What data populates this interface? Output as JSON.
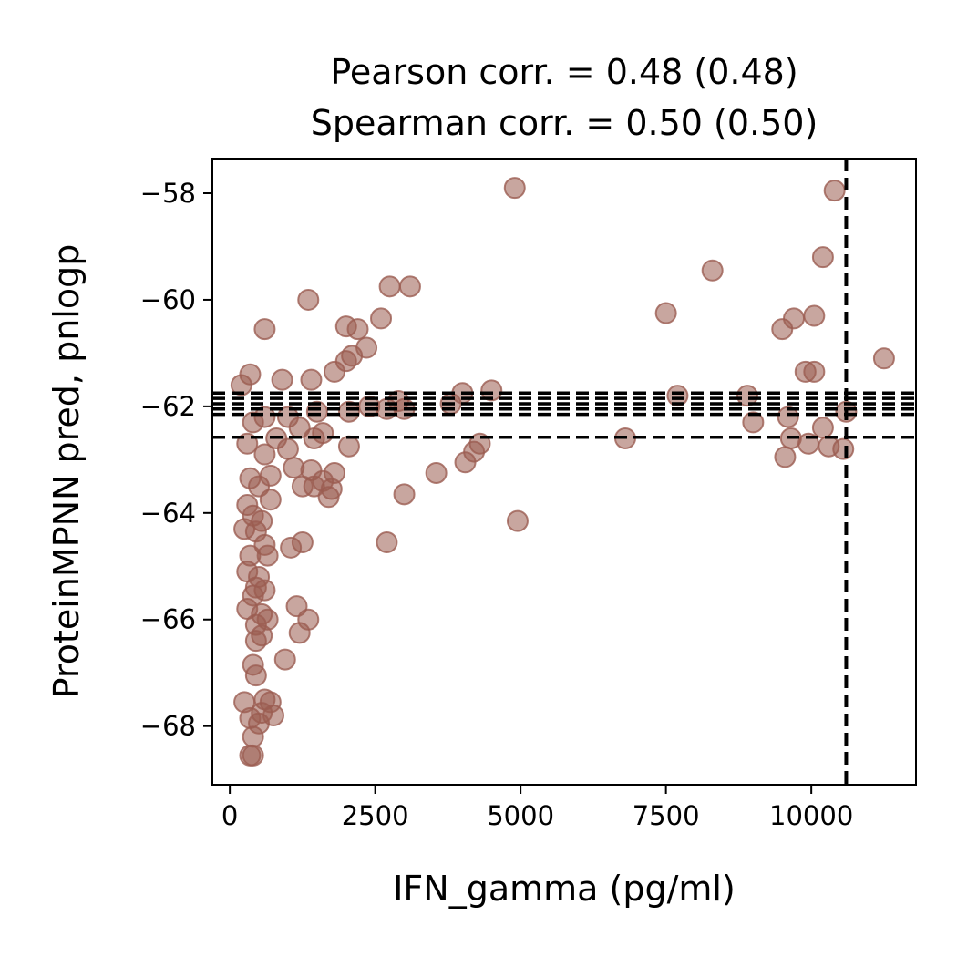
{
  "chart_data": {
    "type": "scatter",
    "title": [
      "Pearson corr. = 0.48 (0.48)",
      "Spearman corr. = 0.50 (0.50)"
    ],
    "xlabel": "IFN_gamma (pg/ml)",
    "ylabel": "ProteinMPNN pred, pnlogp",
    "xlim": [
      -300,
      11800
    ],
    "ylim": [
      -69.1,
      -57.35
    ],
    "xticks": [
      0,
      2500,
      5000,
      7500,
      10000
    ],
    "xtick_labels": [
      "0",
      "2500",
      "5000",
      "7500",
      "10000"
    ],
    "yticks": [
      -58,
      -60,
      -62,
      -64,
      -66,
      -68
    ],
    "ytick_labels": [
      "−58",
      "−60",
      "−62",
      "−64",
      "−66",
      "−68"
    ],
    "grid": false,
    "point_color": "#9b5d51",
    "point_alpha": 0.55,
    "reference_lines": {
      "horizontal_dashed": [
        -61.75,
        -61.85,
        -61.95,
        -62.05,
        -62.15,
        -62.58
      ],
      "vertical_dashed": [
        10600
      ]
    },
    "points": [
      [
        4900,
        -57.9
      ],
      [
        10400,
        -57.95
      ],
      [
        10200,
        -59.2
      ],
      [
        8300,
        -59.45
      ],
      [
        1350,
        -60.0
      ],
      [
        2750,
        -59.75
      ],
      [
        3100,
        -59.75
      ],
      [
        7500,
        -60.25
      ],
      [
        10050,
        -60.3
      ],
      [
        9700,
        -60.35
      ],
      [
        2600,
        -60.35
      ],
      [
        600,
        -60.55
      ],
      [
        9500,
        -60.55
      ],
      [
        2000,
        -60.5
      ],
      [
        2200,
        -60.55
      ],
      [
        2350,
        -60.9
      ],
      [
        2100,
        -61.05
      ],
      [
        2000,
        -61.15
      ],
      [
        11250,
        -61.1
      ],
      [
        9900,
        -61.35
      ],
      [
        10050,
        -61.35
      ],
      [
        1800,
        -61.35
      ],
      [
        1400,
        -61.5
      ],
      [
        900,
        -61.5
      ],
      [
        350,
        -61.4
      ],
      [
        200,
        -61.6
      ],
      [
        4500,
        -61.7
      ],
      [
        4000,
        -61.75
      ],
      [
        7700,
        -61.8
      ],
      [
        8900,
        -61.8
      ],
      [
        2900,
        -61.9
      ],
      [
        3800,
        -61.95
      ],
      [
        2400,
        -62.0
      ],
      [
        2050,
        -62.1
      ],
      [
        3000,
        -62.05
      ],
      [
        2700,
        -62.05
      ],
      [
        1500,
        -62.1
      ],
      [
        1000,
        -62.2
      ],
      [
        600,
        -62.2
      ],
      [
        400,
        -62.3
      ],
      [
        9600,
        -62.2
      ],
      [
        10600,
        -62.1
      ],
      [
        10200,
        -62.4
      ],
      [
        9000,
        -62.3
      ],
      [
        1200,
        -62.4
      ],
      [
        1600,
        -62.5
      ],
      [
        1450,
        -62.6
      ],
      [
        800,
        -62.6
      ],
      [
        6800,
        -62.6
      ],
      [
        9650,
        -62.6
      ],
      [
        9950,
        -62.7
      ],
      [
        10300,
        -62.75
      ],
      [
        10550,
        -62.8
      ],
      [
        4300,
        -62.7
      ],
      [
        4200,
        -62.85
      ],
      [
        2050,
        -62.75
      ],
      [
        1000,
        -62.8
      ],
      [
        600,
        -62.9
      ],
      [
        300,
        -62.7
      ],
      [
        4050,
        -63.05
      ],
      [
        9550,
        -62.95
      ],
      [
        1100,
        -63.15
      ],
      [
        1400,
        -63.2
      ],
      [
        1800,
        -63.25
      ],
      [
        3550,
        -63.25
      ],
      [
        700,
        -63.3
      ],
      [
        350,
        -63.35
      ],
      [
        1600,
        -63.4
      ],
      [
        1250,
        -63.5
      ],
      [
        1450,
        -63.5
      ],
      [
        1750,
        -63.55
      ],
      [
        1700,
        -63.7
      ],
      [
        3000,
        -63.65
      ],
      [
        500,
        -63.5
      ],
      [
        700,
        -63.75
      ],
      [
        300,
        -63.85
      ],
      [
        400,
        -64.05
      ],
      [
        550,
        -64.15
      ],
      [
        4950,
        -64.15
      ],
      [
        250,
        -64.3
      ],
      [
        450,
        -64.35
      ],
      [
        2700,
        -64.55
      ],
      [
        1250,
        -64.55
      ],
      [
        1050,
        -64.65
      ],
      [
        600,
        -64.6
      ],
      [
        350,
        -64.8
      ],
      [
        650,
        -64.8
      ],
      [
        300,
        -65.1
      ],
      [
        500,
        -65.2
      ],
      [
        450,
        -65.4
      ],
      [
        600,
        -65.45
      ],
      [
        400,
        -65.55
      ],
      [
        1150,
        -65.75
      ],
      [
        300,
        -65.8
      ],
      [
        550,
        -65.9
      ],
      [
        1350,
        -66.0
      ],
      [
        650,
        -66.0
      ],
      [
        450,
        -66.1
      ],
      [
        1200,
        -66.25
      ],
      [
        550,
        -66.3
      ],
      [
        450,
        -66.4
      ],
      [
        950,
        -66.75
      ],
      [
        400,
        -66.85
      ],
      [
        450,
        -67.05
      ],
      [
        250,
        -67.55
      ],
      [
        600,
        -67.5
      ],
      [
        700,
        -67.55
      ],
      [
        550,
        -67.75
      ],
      [
        750,
        -67.8
      ],
      [
        350,
        -67.85
      ],
      [
        500,
        -67.95
      ],
      [
        400,
        -68.2
      ],
      [
        350,
        -68.55
      ],
      [
        400,
        -68.55
      ]
    ]
  }
}
